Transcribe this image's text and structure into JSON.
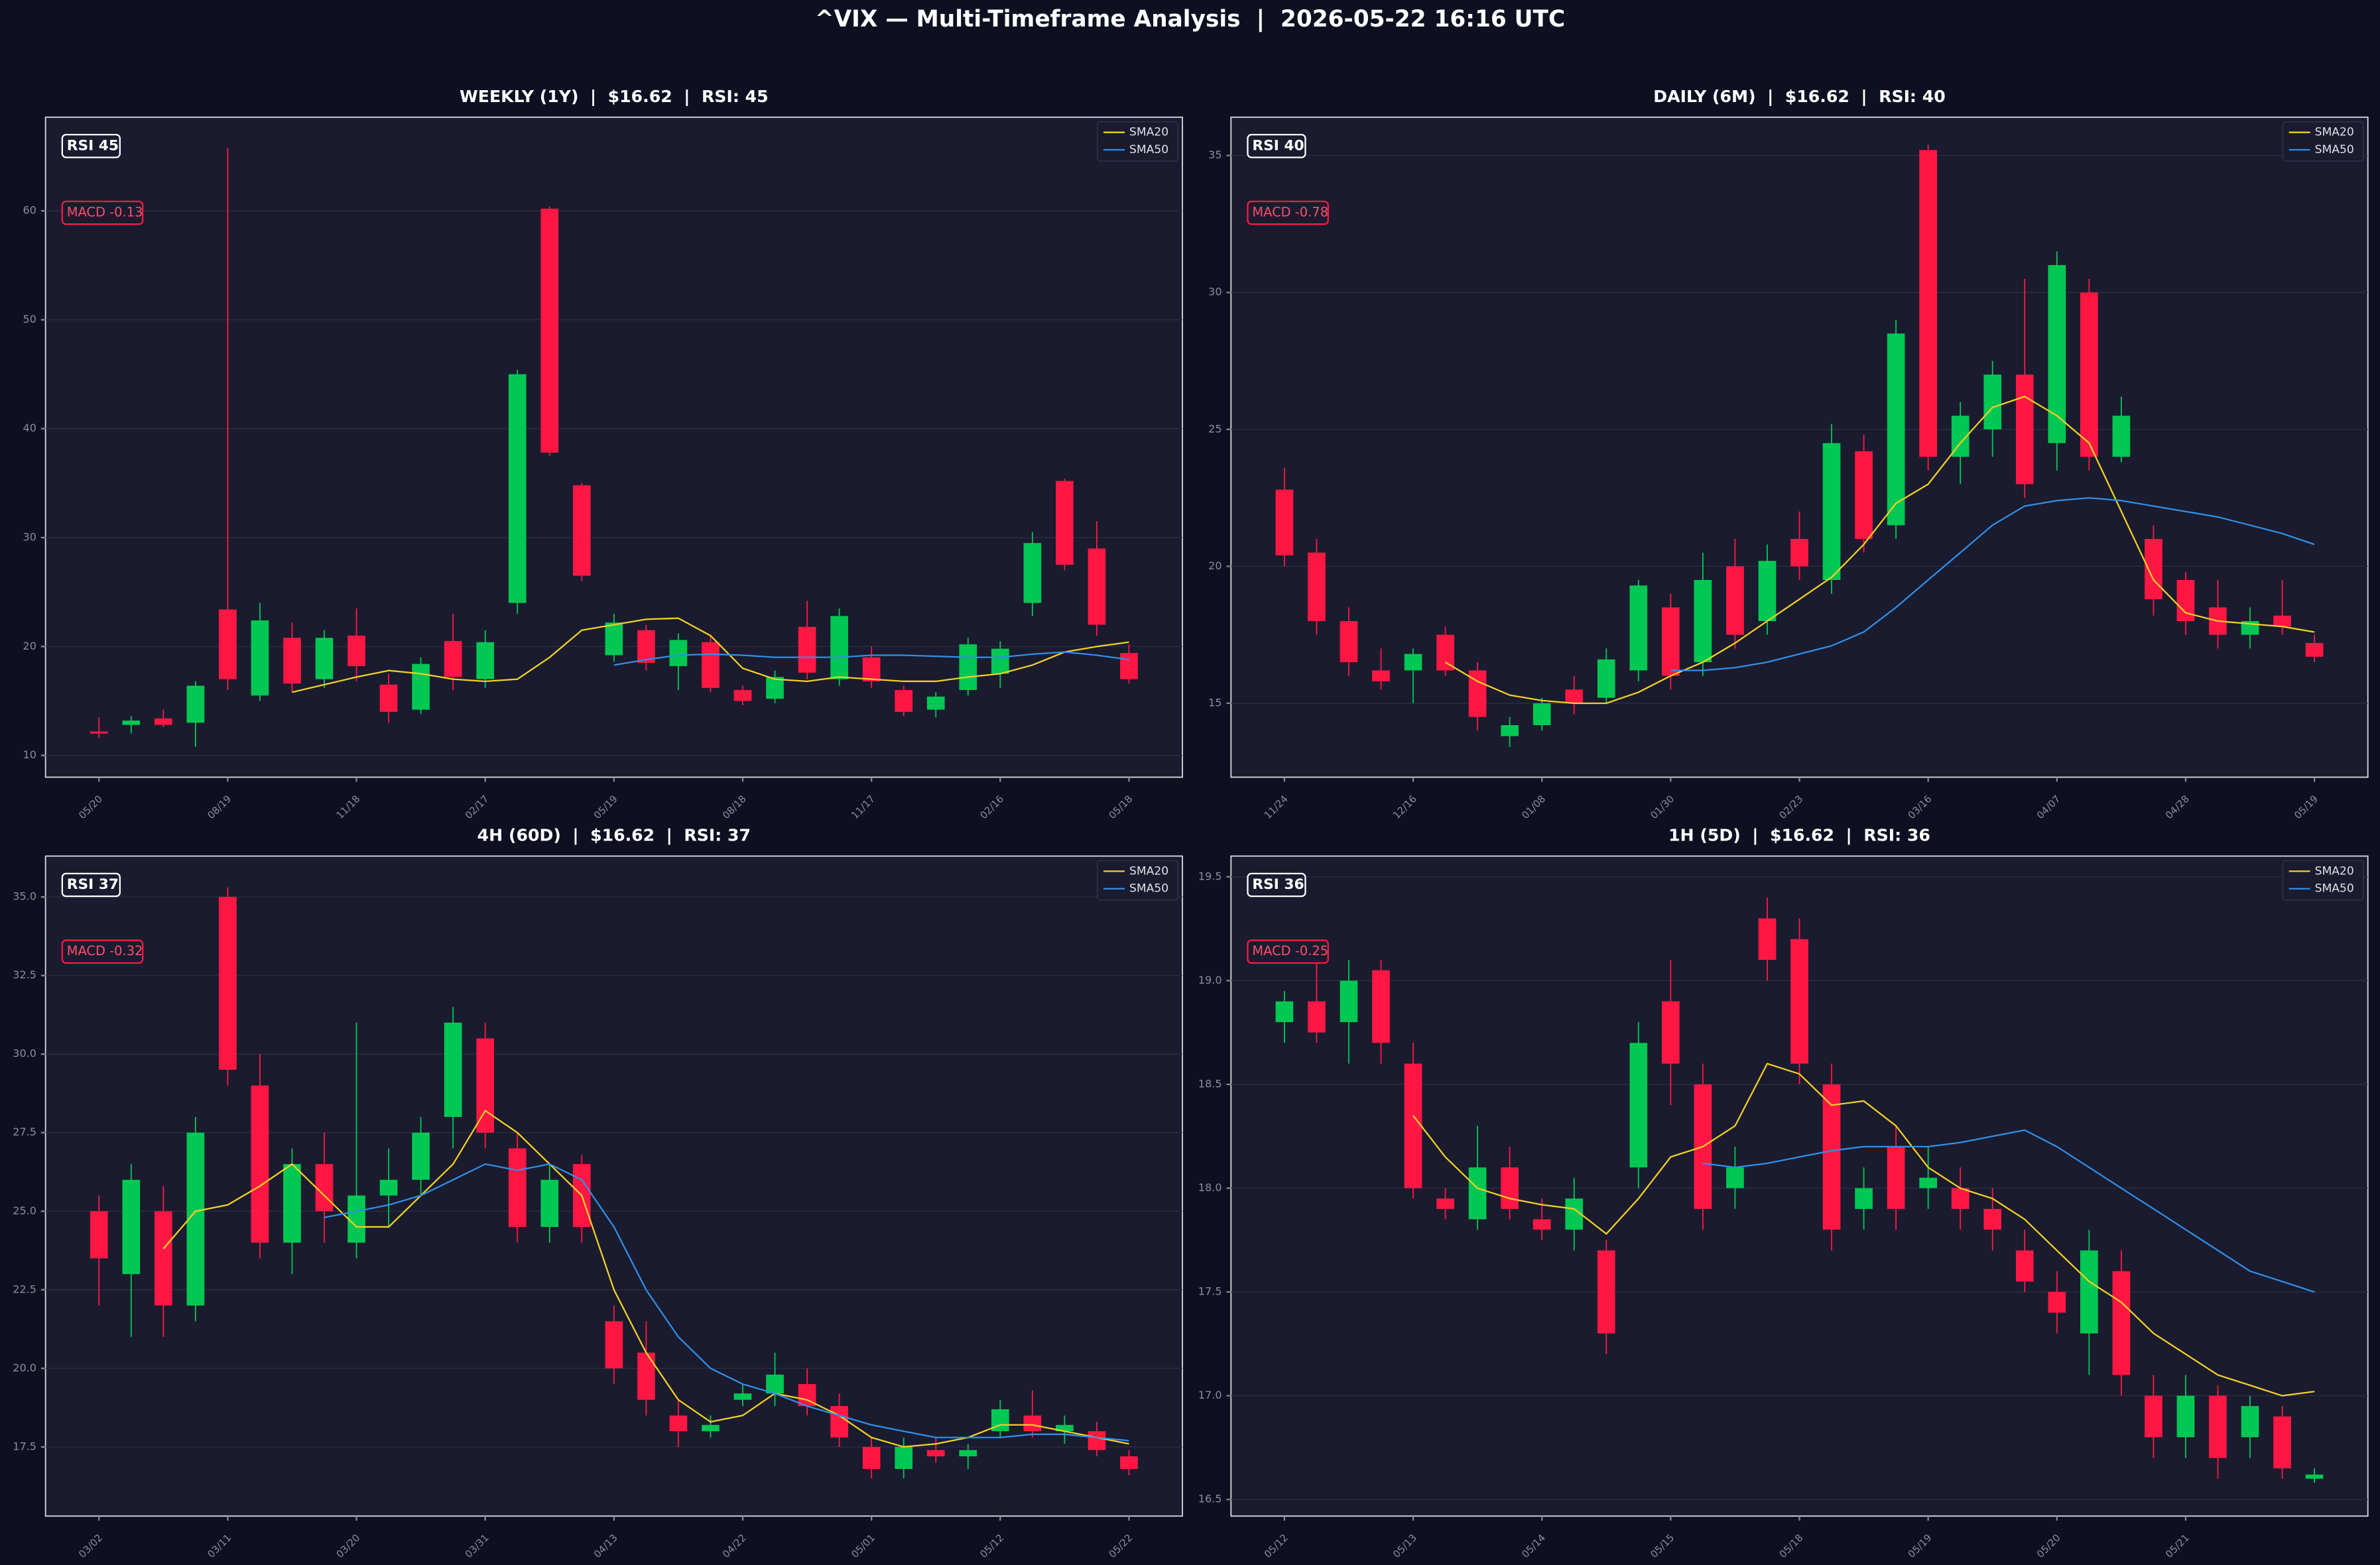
{
  "title": "^VIX — Multi-Timeframe Analysis  |  2026-05-22 16:16 UTC",
  "chart_data": [
    {
      "type": "candlestick",
      "title": "WEEKLY (1Y)  |  $16.62  |  RSI: 45",
      "annotations": [
        "RSI 45",
        "MACD -0.13"
      ],
      "up_color": "#00c853",
      "down_color": "#ff1744",
      "grid": true,
      "legend": "upper right",
      "categories": [
        "05/20",
        null,
        null,
        null,
        "08/19",
        null,
        null,
        null,
        "11/18",
        null,
        null,
        null,
        "02/17",
        null,
        null,
        null,
        "05/19",
        null,
        null,
        null,
        "08/18",
        null,
        null,
        null,
        "11/17",
        null,
        null,
        null,
        "02/16",
        null,
        null,
        null,
        "05/18"
      ],
      "open": [
        12.2,
        12.8,
        13.4,
        13.0,
        23.4,
        15.5,
        20.8,
        17.0,
        21.0,
        16.5,
        14.2,
        20.5,
        17.0,
        24.0,
        60.2,
        34.8,
        19.2,
        21.5,
        18.2,
        20.4,
        16.0,
        15.2,
        21.8,
        17.0,
        19.0,
        16.0,
        14.2,
        16.0,
        17.5,
        24.0,
        35.2,
        29.0,
        19.4
      ],
      "high": [
        13.5,
        13.6,
        14.2,
        16.8,
        65.8,
        24.0,
        22.2,
        21.5,
        23.5,
        17.5,
        19.0,
        23.0,
        21.5,
        45.4,
        60.4,
        35.0,
        23.0,
        22.0,
        21.2,
        21.0,
        16.4,
        17.8,
        24.2,
        23.5,
        20.0,
        16.4,
        15.8,
        20.8,
        20.5,
        30.5,
        35.4,
        31.5,
        20.2
      ],
      "low": [
        11.6,
        12.0,
        12.6,
        10.8,
        16.0,
        15.0,
        15.8,
        16.2,
        16.8,
        13.0,
        13.8,
        16.0,
        16.2,
        23.0,
        37.5,
        26.0,
        18.6,
        17.8,
        16.0,
        15.8,
        14.6,
        14.8,
        17.0,
        16.4,
        16.2,
        13.6,
        13.5,
        15.5,
        16.2,
        22.8,
        27.0,
        21.0,
        16.6
      ],
      "close": [
        12.0,
        13.2,
        12.8,
        16.4,
        17.0,
        22.4,
        16.6,
        20.8,
        18.2,
        14.0,
        18.4,
        17.2,
        20.4,
        45.0,
        37.8,
        26.5,
        22.2,
        18.5,
        20.6,
        16.2,
        15.0,
        17.2,
        17.6,
        22.8,
        16.8,
        14.0,
        15.4,
        20.2,
        19.8,
        29.5,
        27.5,
        22.0,
        17.0
      ],
      "series": [
        {
          "name": "SMA20",
          "color": "#f2d024",
          "values": [
            null,
            null,
            null,
            null,
            null,
            null,
            15.8,
            16.5,
            17.2,
            17.8,
            17.5,
            17.0,
            16.8,
            17.0,
            19.0,
            21.5,
            22.0,
            22.5,
            22.6,
            21.0,
            18.0,
            17.0,
            16.8,
            17.2,
            17.0,
            16.8,
            16.8,
            17.2,
            17.5,
            18.3,
            19.5,
            20.0,
            20.4
          ]
        },
        {
          "name": "SMA50",
          "color": "#2f8fe8",
          "values": [
            null,
            null,
            null,
            null,
            null,
            null,
            null,
            null,
            null,
            null,
            null,
            null,
            null,
            null,
            null,
            null,
            18.3,
            18.8,
            19.2,
            19.3,
            19.2,
            19.0,
            19.0,
            19.0,
            19.2,
            19.2,
            19.1,
            19.0,
            19.0,
            19.3,
            19.5,
            19.2,
            18.8
          ]
        }
      ],
      "ylim": [
        8,
        68.6
      ],
      "yticks": [
        10,
        20,
        30,
        40,
        50,
        60
      ]
    },
    {
      "type": "candlestick",
      "title": "DAILY (6M)  |  $16.62  |  RSI: 40",
      "annotations": [
        "RSI 40",
        "MACD -0.78"
      ],
      "up_color": "#00c853",
      "down_color": "#ff1744",
      "grid": true,
      "legend": "upper right",
      "categories": [
        "11/24",
        null,
        null,
        null,
        "12/16",
        null,
        null,
        null,
        "01/08",
        null,
        null,
        null,
        "01/30",
        null,
        null,
        null,
        "02/23",
        null,
        null,
        null,
        "03/16",
        null,
        null,
        null,
        "04/07",
        null,
        null,
        null,
        "04/28",
        null,
        null,
        null,
        "05/19"
      ],
      "open": [
        22.8,
        20.5,
        18.0,
        16.2,
        16.2,
        17.5,
        16.2,
        13.8,
        14.2,
        15.5,
        15.2,
        16.2,
        18.5,
        16.5,
        20.0,
        18.0,
        21.0,
        19.5,
        24.2,
        21.5,
        35.2,
        24.0,
        25.0,
        27.0,
        24.5,
        30.0,
        24.0,
        21.0,
        19.5,
        18.5,
        17.5,
        18.2,
        17.2
      ],
      "high": [
        23.6,
        21.0,
        18.5,
        17.0,
        17.0,
        17.8,
        16.5,
        14.5,
        15.2,
        16.0,
        17.0,
        19.5,
        19.0,
        20.5,
        21.0,
        20.8,
        22.0,
        25.2,
        24.8,
        29.0,
        35.4,
        26.0,
        27.5,
        30.5,
        31.5,
        30.5,
        26.2,
        21.5,
        19.8,
        19.5,
        18.5,
        19.5,
        17.5
      ],
      "low": [
        20.0,
        17.5,
        16.0,
        15.5,
        15.0,
        16.0,
        14.0,
        13.4,
        14.0,
        14.6,
        15.0,
        15.8,
        15.5,
        16.0,
        17.0,
        17.5,
        19.5,
        19.0,
        20.5,
        21.0,
        23.5,
        23.0,
        24.0,
        22.5,
        23.5,
        23.5,
        23.8,
        18.2,
        17.5,
        17.0,
        17.0,
        17.5,
        16.5
      ],
      "close": [
        20.4,
        18.0,
        16.5,
        15.8,
        16.8,
        16.2,
        14.5,
        14.2,
        15.0,
        15.0,
        16.6,
        19.3,
        16.0,
        19.5,
        17.5,
        20.2,
        20.0,
        24.5,
        21.0,
        28.5,
        24.0,
        25.5,
        27.0,
        23.0,
        31.0,
        24.0,
        25.5,
        18.8,
        18.0,
        17.5,
        18.0,
        17.8,
        16.7
      ],
      "series": [
        {
          "name": "SMA20",
          "color": "#f2d024",
          "values": [
            null,
            null,
            null,
            null,
            null,
            16.5,
            15.8,
            15.3,
            15.1,
            15.0,
            15.0,
            15.4,
            16.0,
            16.5,
            17.2,
            18.0,
            18.8,
            19.6,
            20.8,
            22.3,
            23.0,
            24.5,
            25.8,
            26.2,
            25.5,
            24.5,
            22.0,
            19.5,
            18.3,
            18.0,
            17.9,
            17.8,
            17.6
          ]
        },
        {
          "name": "SMA50",
          "color": "#2f8fe8",
          "values": [
            null,
            null,
            null,
            null,
            null,
            null,
            null,
            null,
            null,
            null,
            null,
            null,
            16.2,
            16.2,
            16.3,
            16.5,
            16.8,
            17.1,
            17.6,
            18.5,
            19.5,
            20.5,
            21.5,
            22.2,
            22.4,
            22.5,
            22.4,
            22.2,
            22.0,
            21.8,
            21.5,
            21.2,
            20.8
          ]
        }
      ],
      "ylim": [
        12.3,
        36.4
      ],
      "yticks": [
        15,
        20,
        25,
        30,
        35
      ]
    },
    {
      "type": "candlestick",
      "title": "4H (60D)  |  $16.62  |  RSI: 37",
      "annotations": [
        "RSI 37",
        "MACD -0.32"
      ],
      "up_color": "#00c853",
      "down_color": "#ff1744",
      "grid": true,
      "legend": "upper right",
      "categories": [
        "03/02",
        null,
        null,
        null,
        "03/11",
        null,
        null,
        null,
        "03/20",
        null,
        null,
        null,
        "03/31",
        null,
        null,
        null,
        "04/13",
        null,
        null,
        null,
        "04/22",
        null,
        null,
        null,
        "05/01",
        null,
        null,
        null,
        "05/12",
        null,
        null,
        null,
        "05/22"
      ],
      "open": [
        25.0,
        23.0,
        25.0,
        22.0,
        35.0,
        29.0,
        24.0,
        26.5,
        24.0,
        25.5,
        26.0,
        28.0,
        30.5,
        27.0,
        24.5,
        26.5,
        21.5,
        20.5,
        18.5,
        18.0,
        19.0,
        19.2,
        19.5,
        18.8,
        17.5,
        16.8,
        17.4,
        17.2,
        18.0,
        18.5,
        18.0,
        18.0,
        17.2
      ],
      "high": [
        25.5,
        26.5,
        25.8,
        28.0,
        35.3,
        30.0,
        27.0,
        27.5,
        31.0,
        27.0,
        28.0,
        31.5,
        31.0,
        27.5,
        26.5,
        26.8,
        22.0,
        21.5,
        19.0,
        18.5,
        19.5,
        20.5,
        20.0,
        19.2,
        17.8,
        17.8,
        17.8,
        17.6,
        19.0,
        19.3,
        18.5,
        18.3,
        17.4
      ],
      "low": [
        22.0,
        21.0,
        21.0,
        21.5,
        29.0,
        23.5,
        23.0,
        24.0,
        23.5,
        24.5,
        25.5,
        27.0,
        27.0,
        24.0,
        24.0,
        24.0,
        19.5,
        18.5,
        17.5,
        17.8,
        18.8,
        18.8,
        18.5,
        17.5,
        16.5,
        16.5,
        17.0,
        16.8,
        17.8,
        17.8,
        17.6,
        17.2,
        16.6
      ],
      "close": [
        23.5,
        26.0,
        22.0,
        27.5,
        29.5,
        24.0,
        26.5,
        25.0,
        25.5,
        26.0,
        27.5,
        31.0,
        27.5,
        24.5,
        26.0,
        24.5,
        20.0,
        19.0,
        18.0,
        18.2,
        19.2,
        19.8,
        18.8,
        17.8,
        16.8,
        17.5,
        17.2,
        17.4,
        18.7,
        18.0,
        18.2,
        17.4,
        16.8
      ],
      "series": [
        {
          "name": "SMA20",
          "color": "#f2d024",
          "values": [
            null,
            null,
            23.8,
            25.0,
            25.2,
            25.8,
            26.5,
            25.5,
            24.5,
            24.5,
            25.5,
            26.5,
            28.2,
            27.5,
            26.5,
            25.5,
            22.5,
            20.5,
            19.0,
            18.3,
            18.5,
            19.2,
            19.0,
            18.5,
            17.8,
            17.5,
            17.6,
            17.8,
            18.2,
            18.2,
            18.0,
            17.8,
            17.6
          ]
        },
        {
          "name": "SMA50",
          "color": "#2f8fe8",
          "values": [
            null,
            null,
            null,
            null,
            null,
            null,
            null,
            24.8,
            25.0,
            25.2,
            25.5,
            26.0,
            26.5,
            26.3,
            26.5,
            26.0,
            24.5,
            22.5,
            21.0,
            20.0,
            19.5,
            19.2,
            18.8,
            18.5,
            18.2,
            18.0,
            17.8,
            17.8,
            17.8,
            17.9,
            17.9,
            17.8,
            17.7
          ]
        }
      ],
      "ylim": [
        15.3,
        36.3
      ],
      "yticks": [
        17.5,
        {
          "value": 20,
          "label": "20.0"
        },
        22.5,
        {
          "value": 25,
          "label": "25.0"
        },
        27.5,
        {
          "value": 30,
          "label": "30.0"
        },
        32.5,
        {
          "value": 35,
          "label": "35.0"
        }
      ]
    },
    {
      "type": "candlestick",
      "title": "1H (5D)  |  $16.62  |  RSI: 36",
      "annotations": [
        "RSI 36",
        "MACD -0.25"
      ],
      "up_color": "#00c853",
      "down_color": "#ff1744",
      "grid": true,
      "legend": "upper right",
      "categories": [
        "05/12",
        null,
        null,
        null,
        "05/13",
        null,
        null,
        null,
        "05/14",
        null,
        null,
        null,
        "05/15",
        null,
        null,
        null,
        "05/18",
        null,
        null,
        null,
        "05/19",
        null,
        null,
        null,
        "05/20",
        null,
        null,
        null,
        "05/21",
        null,
        null,
        null,
        null
      ],
      "open": [
        18.8,
        18.9,
        18.8,
        19.05,
        18.6,
        17.95,
        17.85,
        18.1,
        17.85,
        17.8,
        17.7,
        18.1,
        18.9,
        18.5,
        18.0,
        19.3,
        19.2,
        18.5,
        17.9,
        18.2,
        18.0,
        18.0,
        17.9,
        17.7,
        17.5,
        17.3,
        17.6,
        17.0,
        16.8,
        17.0,
        16.8,
        16.9,
        16.6
      ],
      "high": [
        18.95,
        19.1,
        19.1,
        19.1,
        18.7,
        18.0,
        18.3,
        18.2,
        17.95,
        18.05,
        17.75,
        18.8,
        19.1,
        18.6,
        18.2,
        19.4,
        19.3,
        18.6,
        18.1,
        18.3,
        18.2,
        18.1,
        18.0,
        17.8,
        17.6,
        17.8,
        17.7,
        17.1,
        17.1,
        17.05,
        17.0,
        16.95,
        16.65
      ],
      "low": [
        18.7,
        18.7,
        18.6,
        18.6,
        17.95,
        17.85,
        17.8,
        17.85,
        17.75,
        17.7,
        17.2,
        18.0,
        18.4,
        17.8,
        17.9,
        19.0,
        18.5,
        17.7,
        17.8,
        17.8,
        17.9,
        17.8,
        17.7,
        17.5,
        17.3,
        17.1,
        17.0,
        16.7,
        16.7,
        16.6,
        16.7,
        16.6,
        16.58
      ],
      "close": [
        18.9,
        18.75,
        19.0,
        18.7,
        18.0,
        17.9,
        18.1,
        17.9,
        17.8,
        17.95,
        17.3,
        18.7,
        18.6,
        17.9,
        18.1,
        19.1,
        18.6,
        17.8,
        18.0,
        17.9,
        18.05,
        17.9,
        17.8,
        17.55,
        17.4,
        17.7,
        17.1,
        16.8,
        17.0,
        16.7,
        16.95,
        16.65,
        16.62
      ],
      "series": [
        {
          "name": "SMA20",
          "color": "#f2d024",
          "values": [
            null,
            null,
            null,
            null,
            18.35,
            18.15,
            18.0,
            17.95,
            17.92,
            17.9,
            17.78,
            17.95,
            18.15,
            18.2,
            18.3,
            18.6,
            18.55,
            18.4,
            18.42,
            18.3,
            18.1,
            18.0,
            17.95,
            17.85,
            17.7,
            17.55,
            17.45,
            17.3,
            17.2,
            17.1,
            17.05,
            17.0,
            17.02
          ]
        },
        {
          "name": "SMA50",
          "color": "#2f8fe8",
          "values": [
            null,
            null,
            null,
            null,
            null,
            null,
            null,
            null,
            null,
            null,
            null,
            null,
            null,
            18.12,
            18.1,
            18.12,
            18.15,
            18.18,
            18.2,
            18.2,
            18.2,
            18.22,
            18.25,
            18.28,
            18.2,
            18.1,
            18.0,
            17.9,
            17.8,
            17.7,
            17.6,
            17.55,
            17.5
          ]
        }
      ],
      "ylim": [
        16.42,
        19.6
      ],
      "yticks": [
        16.5,
        {
          "value": 17,
          "label": "17.0"
        },
        17.5,
        {
          "value": 18,
          "label": "18.0"
        },
        18.5,
        {
          "value": 19,
          "label": "19.0"
        },
        19.5
      ]
    }
  ]
}
